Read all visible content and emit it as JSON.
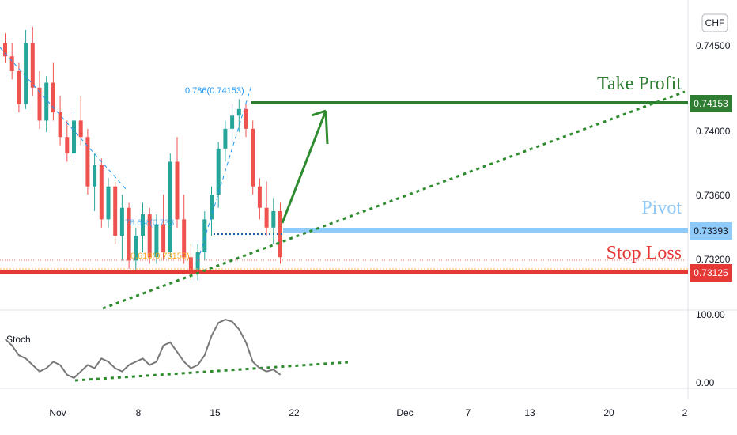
{
  "currency": "CHF",
  "indicator_label": "Stoch",
  "colors": {
    "up_candle": "#26a69a",
    "down_candle": "#ef5350",
    "take_profit": "#2e7d32",
    "pivot": "#90caf9",
    "stop_loss": "#e53935",
    "fib": "#2196f3",
    "trend": "#2e8b2e",
    "stoch_line": "#787878"
  },
  "levels": {
    "take_profit": {
      "label": "Take Profit",
      "price": 0.74153,
      "badge": "0.74153"
    },
    "pivot": {
      "label": "Pivot",
      "price": 0.73393,
      "badge": "0.73393"
    },
    "stop_loss": {
      "label": "Stop Loss",
      "price": 0.73125,
      "badge": "0.73125"
    }
  },
  "fib_labels": {
    "top": "0.786(0.74153)",
    "mid": "78.6%(0.733",
    "low": "0.618(0.73153)"
  },
  "price_axis": {
    "ticks": [
      "0.74500",
      "0.74000",
      "0.73600",
      "0.73200"
    ]
  },
  "stoch_axis": {
    "ticks": [
      "100.00",
      "0.00"
    ]
  },
  "time_axis": {
    "ticks": [
      "Nov",
      "8",
      "15",
      "22",
      "Dec",
      "7",
      "13",
      "20",
      "2"
    ]
  },
  "chart_data": {
    "type": "candlestick",
    "y_range": [
      0.7295,
      0.7468
    ],
    "x": [
      "Nov",
      "8",
      "15",
      "22",
      "Dec",
      "7",
      "13",
      "20",
      "2"
    ],
    "candles": [
      [
        0.7452,
        0.7458,
        0.744,
        0.7444
      ],
      [
        0.7444,
        0.7452,
        0.743,
        0.7435
      ],
      [
        0.7435,
        0.744,
        0.741,
        0.7415
      ],
      [
        0.7415,
        0.746,
        0.7412,
        0.7452
      ],
      [
        0.7452,
        0.7462,
        0.742,
        0.7425
      ],
      [
        0.7425,
        0.7435,
        0.74,
        0.7405
      ],
      [
        0.7405,
        0.7432,
        0.7398,
        0.7428
      ],
      [
        0.7428,
        0.744,
        0.7405,
        0.741
      ],
      [
        0.741,
        0.742,
        0.739,
        0.7395
      ],
      [
        0.7395,
        0.7405,
        0.738,
        0.7385
      ],
      [
        0.7385,
        0.741,
        0.738,
        0.7405
      ],
      [
        0.7405,
        0.742,
        0.739,
        0.7395
      ],
      [
        0.7395,
        0.74,
        0.736,
        0.7365
      ],
      [
        0.7365,
        0.7385,
        0.735,
        0.7378
      ],
      [
        0.7378,
        0.7382,
        0.734,
        0.7345
      ],
      [
        0.7345,
        0.737,
        0.734,
        0.7365
      ],
      [
        0.7365,
        0.7368,
        0.733,
        0.7335
      ],
      [
        0.7335,
        0.736,
        0.732,
        0.7352
      ],
      [
        0.7352,
        0.7355,
        0.7315,
        0.732
      ],
      [
        0.732,
        0.734,
        0.7312,
        0.7335
      ],
      [
        0.7335,
        0.7355,
        0.7325,
        0.7348
      ],
      [
        0.7348,
        0.7352,
        0.7318,
        0.7322
      ],
      [
        0.7322,
        0.7348,
        0.7318,
        0.7342
      ],
      [
        0.7342,
        0.736,
        0.732,
        0.7325
      ],
      [
        0.7325,
        0.7385,
        0.7322,
        0.738
      ],
      [
        0.738,
        0.7395,
        0.734,
        0.7345
      ],
      [
        0.7345,
        0.736,
        0.7318,
        0.7322
      ],
      [
        0.7322,
        0.733,
        0.7308,
        0.7312
      ],
      [
        0.7312,
        0.733,
        0.7308,
        0.7325
      ],
      [
        0.7325,
        0.735,
        0.732,
        0.7345
      ],
      [
        0.7345,
        0.7365,
        0.7335,
        0.736
      ],
      [
        0.736,
        0.7392,
        0.7352,
        0.7388
      ],
      [
        0.7388,
        0.7405,
        0.738,
        0.74
      ],
      [
        0.74,
        0.7415,
        0.7392,
        0.7408
      ],
      [
        0.7408,
        0.7418,
        0.7398,
        0.7412
      ],
      [
        0.7412,
        0.7415,
        0.7395,
        0.74
      ],
      [
        0.74,
        0.7405,
        0.736,
        0.7365
      ],
      [
        0.7365,
        0.737,
        0.7345,
        0.7352
      ],
      [
        0.7352,
        0.7368,
        0.7335,
        0.734
      ],
      [
        0.734,
        0.7358,
        0.733,
        0.735
      ],
      [
        0.735,
        0.7355,
        0.7318,
        0.7322
      ]
    ],
    "stoch": [
      65,
      55,
      40,
      35,
      25,
      15,
      20,
      30,
      25,
      10,
      5,
      15,
      25,
      20,
      35,
      30,
      20,
      15,
      25,
      30,
      35,
      25,
      30,
      55,
      60,
      45,
      30,
      20,
      25,
      40,
      70,
      90,
      95,
      92,
      80,
      60,
      30,
      20,
      15,
      18,
      10
    ],
    "levels": {
      "take_profit": 0.74153,
      "pivot": 0.73393,
      "stop_loss": 0.73125
    },
    "fib": {
      "0.786": 0.74153,
      "0.618": 0.73153
    }
  }
}
